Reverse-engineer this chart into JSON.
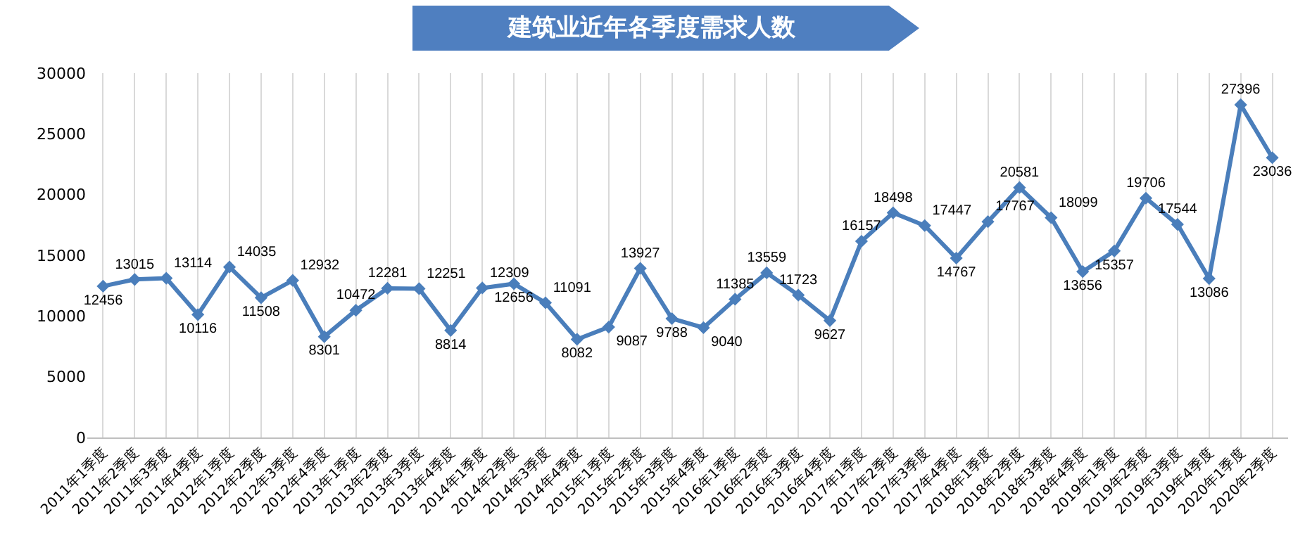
{
  "chart_data": {
    "type": "line",
    "title": "建筑业近年各季度需求人数",
    "categories": [
      "2011年1季度",
      "2011年2季度",
      "2011年3季度",
      "2011年4季度",
      "2012年1季度",
      "2012年2季度",
      "2012年3季度",
      "2012年4季度",
      "2013年1季度",
      "2013年2季度",
      "2013年3季度",
      "2013年4季度",
      "2014年1季度",
      "2014年2季度",
      "2014年3季度",
      "2014年4季度",
      "2015年1季度",
      "2015年2季度",
      "2015年3季度",
      "2015年4季度",
      "2016年1季度",
      "2016年2季度",
      "2016年3季度",
      "2016年4季度",
      "2017年1季度",
      "2017年2季度",
      "2017年3季度",
      "2017年4季度",
      "2018年1季度",
      "2018年2季度",
      "2018年3季度",
      "2018年4季度",
      "2019年1季度",
      "2019年2季度",
      "2019年3季度",
      "2019年4季度",
      "2020年1季度",
      "2020年2季度"
    ],
    "series": [
      {
        "color": "#4a7ebb",
        "values": [
          12456,
          13015,
          13114,
          10116,
          14035,
          11508,
          12932,
          8301,
          10472,
          12281,
          12251,
          8814,
          12309,
          12656,
          11091,
          8082,
          9087,
          13927,
          9788,
          9040,
          11385,
          13559,
          11723,
          9627,
          16157,
          18498,
          17447,
          14767,
          17767,
          20581,
          18099,
          13656,
          15357,
          19706,
          17544,
          13086,
          27396,
          23036
        ]
      }
    ],
    "ylim": [
      0,
      30000
    ],
    "yticks": [
      0,
      5000,
      10000,
      15000,
      20000,
      25000,
      30000
    ],
    "grid": "x",
    "data_labels": true,
    "marker": "diamond",
    "line_style": "solid"
  }
}
